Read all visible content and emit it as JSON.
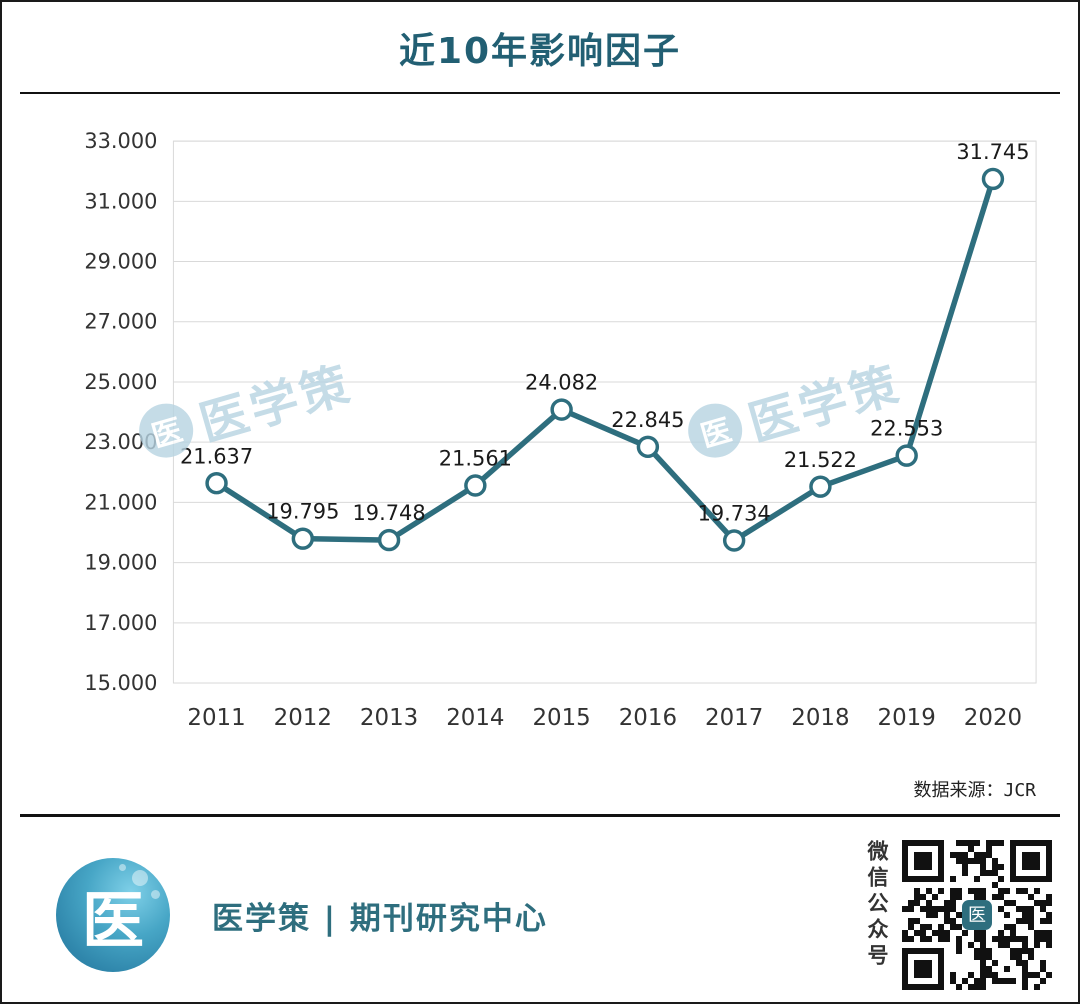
{
  "title": "近10年影响因子",
  "source_note": "数据来源：JCR",
  "watermark": {
    "text": "医学策",
    "logo_char": "医"
  },
  "footer": {
    "brand": "医学策 | 期刊研究中心",
    "qr_caption": "微信公众号",
    "logo_char": "医"
  },
  "colors": {
    "line": "#2e6e7e",
    "title": "#225f73",
    "grid": "#d9d9d9",
    "axis_text": "#333333",
    "label_text": "#1a1a1a",
    "watermark": "#b7d4e2",
    "brand": "#2e6e7e",
    "qr_dark": "#111111"
  },
  "chart_data": {
    "type": "line",
    "title": "近10年影响因子",
    "categories": [
      "2011",
      "2012",
      "2013",
      "2014",
      "2015",
      "2016",
      "2017",
      "2018",
      "2019",
      "2020"
    ],
    "series": [
      {
        "name": "影响因子",
        "values": [
          21.637,
          19.795,
          19.748,
          21.561,
          24.082,
          22.845,
          19.734,
          21.522,
          22.553,
          31.745
        ]
      }
    ],
    "xlabel": "",
    "ylabel": "",
    "ylim": [
      15,
      33
    ],
    "ytick_step": 2,
    "ytick_decimals": 3,
    "grid": true,
    "legend_position": "none",
    "marker": "circle",
    "data_labels": true
  }
}
